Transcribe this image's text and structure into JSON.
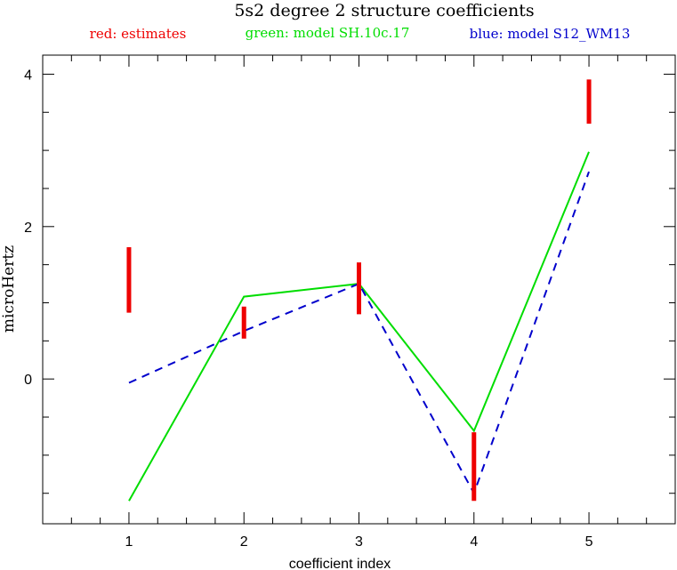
{
  "chart_data": {
    "type": "line",
    "title": "5s2 degree 2 structure coefficients",
    "xlabel": "coefficient index",
    "ylabel": "microHertz",
    "xlim": [
      0.25,
      5.75
    ],
    "ylim": [
      -1.9,
      4.25
    ],
    "x_ticks": [
      1,
      2,
      3,
      4,
      5
    ],
    "y_ticks": [
      0,
      2,
      4
    ],
    "legend_placement": "top, above plot",
    "legend": [
      {
        "text": "red: estimates",
        "color": "#ee0000"
      },
      {
        "text": "green: model SH.10c.17",
        "color": "#00dd00"
      },
      {
        "text": "blue: model S12_WM13",
        "color": "#0000cc"
      }
    ],
    "series": [
      {
        "name": "estimates",
        "kind": "error_bars",
        "color": "#ee0000",
        "x": [
          1,
          2,
          3,
          4,
          5
        ],
        "low": [
          0.87,
          0.53,
          0.85,
          -1.6,
          3.35
        ],
        "high": [
          1.73,
          0.95,
          1.53,
          -0.7,
          3.93
        ]
      },
      {
        "name": "model SH.10c.17",
        "kind": "line",
        "color": "#00dd00",
        "dash": "solid",
        "x": [
          1,
          2,
          3,
          4,
          5
        ],
        "values": [
          -1.6,
          1.08,
          1.25,
          -0.68,
          2.98
        ]
      },
      {
        "name": "model S12_WM13",
        "kind": "line",
        "color": "#0000cc",
        "dash": "dashed",
        "x": [
          1,
          2,
          3,
          4,
          5
        ],
        "values": [
          -0.05,
          0.63,
          1.25,
          -1.5,
          2.72
        ]
      }
    ]
  }
}
